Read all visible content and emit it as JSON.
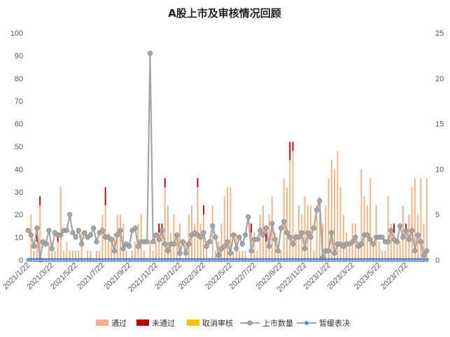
{
  "chart_data": {
    "type": "bar",
    "title": "A股上市及审核情况回顾",
    "y_left": {
      "min": 0,
      "max": 100,
      "ticks": [
        "0",
        "10",
        "20",
        "30",
        "40",
        "50",
        "60",
        "70",
        "80",
        "90",
        "100"
      ]
    },
    "y_right": {
      "min": 0,
      "max": 25,
      "ticks": [
        "0",
        "5",
        "10",
        "15",
        "20",
        "25"
      ]
    },
    "x_tick_labels": [
      "2021/1/22",
      "2021/3/22",
      "2021/5/22",
      "2021/7/22",
      "2021/9/22",
      "2021/11/22",
      "2022/1/22",
      "2022/3/22",
      "2022/5/22",
      "2022/7/22",
      "2022/9/22",
      "2022/11/22",
      "2023/1/22",
      "2023/3/22",
      "2023/5/22",
      "2023/7/22"
    ],
    "x_tick_index": [
      0,
      8,
      16,
      25,
      34,
      43,
      51,
      59,
      68,
      76,
      85,
      93,
      101,
      109,
      118,
      127
    ],
    "n_weeks": 135,
    "legend": [
      {
        "label": "通过",
        "color": "#f4b183",
        "kind": "bar"
      },
      {
        "label": "未通过",
        "color": "#c00000",
        "kind": "bar"
      },
      {
        "label": "取消审核",
        "color": "#ffc000",
        "kind": "bar"
      },
      {
        "label": "上市数量",
        "color": "#a6a6a6",
        "kind": "line"
      },
      {
        "label": "暂缓表决",
        "color": "#4472c4",
        "kind": "star"
      }
    ],
    "grid": false,
    "legend_position": "bottom",
    "passed": [
      0,
      5,
      1,
      2,
      6,
      0,
      0,
      2,
      1,
      1,
      2,
      8,
      1,
      2,
      1,
      1,
      1,
      1,
      3,
      0,
      1,
      1,
      0,
      1,
      1,
      5,
      6,
      3,
      2,
      3,
      5,
      5,
      4,
      1,
      0,
      1,
      2,
      4,
      5,
      1,
      0,
      2,
      1,
      2,
      3,
      3,
      8,
      6,
      3,
      5,
      3,
      4,
      0,
      2,
      5,
      6,
      4,
      8,
      4,
      5,
      2,
      0,
      6,
      1,
      2,
      4,
      7,
      8,
      8,
      1,
      3,
      1,
      1,
      1,
      0,
      3,
      3,
      1,
      5,
      6,
      2,
      5,
      7,
      3,
      2,
      1,
      9,
      8,
      11,
      12,
      3,
      6,
      5,
      7,
      6,
      6,
      1,
      6,
      7,
      4,
      6,
      9,
      11,
      10,
      12,
      8,
      5,
      3,
      2,
      4,
      4,
      2,
      10,
      7,
      6,
      9,
      2,
      6,
      2,
      1,
      1,
      7,
      4,
      3,
      2,
      2,
      6,
      3,
      5,
      8,
      9,
      5,
      9,
      4,
      9
    ],
    "failed": [
      0,
      0,
      0,
      1,
      1,
      0,
      0,
      0,
      0,
      0,
      1,
      0,
      0,
      0,
      0,
      0,
      0,
      0,
      0,
      0,
      0,
      0,
      0,
      0,
      0,
      0,
      2,
      0,
      0,
      0,
      0,
      0,
      0,
      0,
      0,
      0,
      0,
      0,
      0,
      0,
      0,
      0,
      0,
      0,
      1,
      1,
      1,
      0,
      0,
      0,
      0,
      0,
      0,
      0,
      0,
      0,
      0,
      1,
      0,
      1,
      0,
      0,
      0,
      0,
      0,
      0,
      0,
      0,
      0,
      0,
      0,
      0,
      0,
      0,
      0,
      1,
      0,
      0,
      0,
      0,
      1,
      0,
      0,
      0,
      0,
      0,
      0,
      0,
      2,
      1,
      0,
      0,
      0,
      0,
      0,
      0,
      0,
      0,
      0,
      0,
      0,
      0,
      0,
      0,
      0,
      0,
      0,
      0,
      0,
      0,
      0,
      0,
      0,
      0,
      0,
      0,
      0,
      0,
      0,
      0,
      0,
      0,
      0,
      1,
      0,
      0,
      0,
      1,
      0,
      0,
      0,
      0,
      0,
      0,
      0
    ],
    "cancelled": [
      0,
      0,
      0,
      0,
      0,
      0,
      0,
      0,
      0,
      0,
      0,
      0,
      0,
      0,
      0,
      0,
      0,
      0,
      0,
      0,
      0,
      0,
      0,
      0,
      0,
      0,
      0,
      0,
      0,
      0,
      0,
      0,
      0,
      0,
      0,
      0,
      0,
      0,
      0,
      0,
      0,
      0,
      0,
      0,
      0,
      0,
      0,
      0,
      0,
      0,
      0,
      0,
      0,
      0,
      0,
      0,
      0,
      0,
      0,
      0,
      0,
      0,
      0,
      0,
      0,
      0,
      0,
      0,
      0,
      0,
      0,
      0,
      0,
      0,
      0,
      0,
      0,
      0,
      0,
      0,
      0,
      0,
      0,
      0,
      0,
      0,
      0,
      0,
      0,
      0,
      0,
      0,
      0,
      0,
      0,
      0,
      0,
      0,
      0,
      0,
      0,
      0,
      0,
      0,
      0,
      0,
      0,
      0,
      0,
      0,
      0,
      0,
      0,
      0,
      0,
      0,
      0,
      0,
      0,
      0,
      0,
      0,
      0,
      0,
      0,
      0,
      0,
      0,
      0,
      0,
      0,
      0,
      0,
      0,
      0
    ],
    "listings": [
      13,
      11,
      6,
      14,
      0,
      8,
      7,
      13,
      5,
      12,
      11,
      11,
      13,
      13,
      20,
      12,
      10,
      13,
      7,
      12,
      10,
      11,
      14,
      8,
      12,
      13,
      10,
      10,
      9,
      4,
      11,
      13,
      5,
      7,
      6,
      13,
      14,
      6,
      8,
      8,
      8,
      91,
      8,
      11,
      9,
      13,
      7,
      4,
      7,
      7,
      11,
      3,
      8,
      3,
      7,
      11,
      12,
      11,
      10,
      12,
      6,
      8,
      15,
      10,
      2,
      5,
      6,
      8,
      3,
      11,
      5,
      10,
      7,
      11,
      19,
      4,
      9,
      9,
      13,
      11,
      14,
      6,
      16,
      9,
      4,
      14,
      17,
      12,
      10,
      7,
      10,
      10,
      12,
      5,
      12,
      10,
      14,
      22,
      26,
      1,
      4,
      4,
      12,
      3,
      7,
      7,
      6,
      7,
      7,
      8,
      10,
      6,
      7,
      11,
      11,
      9,
      7,
      10,
      10,
      10,
      8,
      8,
      13,
      9,
      8,
      15,
      10,
      13,
      9,
      13,
      4,
      11,
      8,
      2,
      4
    ],
    "postponed": [
      0,
      0,
      0,
      0,
      0,
      0,
      0,
      0,
      0,
      0,
      0,
      0,
      0,
      0,
      0,
      0,
      0,
      0,
      0,
      0,
      0,
      0,
      0,
      0,
      0,
      0,
      0,
      0,
      0,
      0,
      0,
      0,
      0,
      0,
      0,
      0,
      0,
      0,
      0,
      0,
      0,
      0,
      0,
      0,
      0,
      0,
      0,
      0,
      0,
      0,
      0,
      0,
      0,
      0,
      0,
      0,
      0,
      0,
      0,
      0,
      0,
      0,
      0,
      0,
      0,
      0,
      0,
      0,
      0,
      0,
      0,
      0,
      0,
      0,
      0,
      0,
      0,
      0,
      0,
      0,
      0,
      0,
      0,
      0,
      0,
      0,
      0,
      0,
      0,
      0,
      0,
      0,
      0,
      0,
      0,
      0,
      0,
      0,
      0,
      0,
      0,
      0,
      0,
      0,
      0,
      0,
      0,
      0,
      0,
      0,
      0,
      0,
      0,
      0,
      0,
      0,
      0,
      0,
      0,
      0,
      0,
      0,
      0,
      0,
      0,
      0,
      0,
      0,
      0,
      0,
      0,
      0,
      0,
      0,
      0
    ]
  }
}
